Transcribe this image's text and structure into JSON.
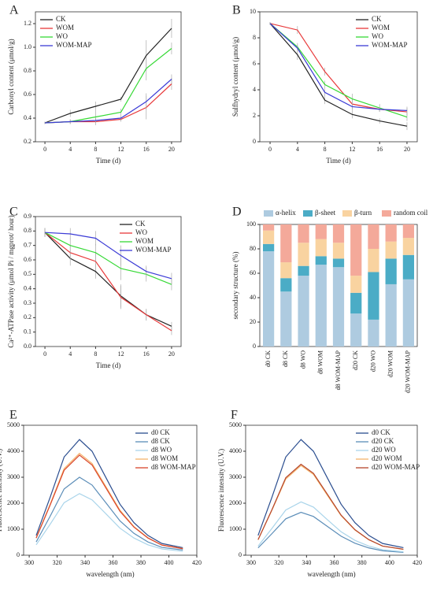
{
  "chart_data": [
    {
      "type": "line",
      "label": "A",
      "xlabel": "Time (d)",
      "ylabel": "Carbonyl content (μmol/g)",
      "x": [
        0,
        4,
        8,
        12,
        16,
        20
      ],
      "xlim": [
        -1.5,
        21.5
      ],
      "xticks": [
        0,
        4,
        8,
        12,
        16,
        20
      ],
      "ylim": [
        0.2,
        1.3
      ],
      "yticks": [
        0.2,
        0.4,
        0.6,
        0.8,
        {
          "value": 1,
          "label": "1.0"
        },
        1.2
      ],
      "legend": "upper left",
      "series": [
        {
          "name": "CK",
          "color": "#222222",
          "values": [
            0.36,
            0.44,
            0.5,
            0.56,
            0.93,
            1.16
          ],
          "errors": [
            0.01,
            0.03,
            0.04,
            0.02,
            0.13,
            0.08
          ]
        },
        {
          "name": "WOM",
          "color": "#e8393a",
          "values": [
            0.36,
            0.37,
            0.37,
            0.39,
            0.49,
            0.69
          ],
          "errors": [
            0.01,
            0.02,
            0.03,
            0.02,
            0.1,
            0.05
          ]
        },
        {
          "name": "WO",
          "color": "#36d936",
          "values": [
            0.36,
            0.37,
            0.41,
            0.45,
            0.82,
            0.99
          ],
          "errors": [
            0.01,
            0.02,
            0.05,
            0.03,
            0.1,
            0.05
          ]
        },
        {
          "name": "WOM-MAP",
          "color": "#3b3bd6",
          "values": [
            0.36,
            0.37,
            0.38,
            0.4,
            0.54,
            0.73
          ],
          "errors": [
            0.01,
            0.02,
            0.02,
            0.02,
            0.07,
            0.04
          ]
        }
      ]
    },
    {
      "type": "line",
      "label": "B",
      "xlabel": "Time (d)",
      "ylabel": "Sulfhydryl content (μmol/g)",
      "x": [
        0,
        4,
        8,
        12,
        16,
        20
      ],
      "xlim": [
        -1.5,
        21.5
      ],
      "xticks": [
        0,
        4,
        8,
        12,
        16,
        20
      ],
      "ylim": [
        0,
        10
      ],
      "yticks": [
        0,
        2,
        4,
        6,
        8,
        10
      ],
      "legend": "upper right",
      "series": [
        {
          "name": "CK",
          "color": "#222222",
          "values": [
            9.1,
            6.7,
            3.2,
            2.1,
            1.6,
            1.2
          ],
          "errors": [
            0.1,
            0.4,
            0.3,
            0.3,
            0.2,
            0.3
          ]
        },
        {
          "name": "WOM",
          "color": "#e8393a",
          "values": [
            9.1,
            8.6,
            5.4,
            2.9,
            2.5,
            2.3
          ],
          "errors": [
            0.1,
            0.3,
            0.3,
            0.4,
            0.2,
            0.3
          ]
        },
        {
          "name": "WO",
          "color": "#36d936",
          "values": [
            9.1,
            7.3,
            4.4,
            3.3,
            2.6,
            1.9
          ],
          "errors": [
            0.1,
            0.3,
            0.3,
            0.4,
            0.3,
            0.3
          ]
        },
        {
          "name": "WOM-MAP",
          "color": "#3b3bd6",
          "values": [
            9.1,
            7.2,
            3.8,
            2.7,
            2.5,
            2.4
          ],
          "errors": [
            0.1,
            0.3,
            0.3,
            0.3,
            0.2,
            0.3
          ]
        }
      ]
    },
    {
      "type": "line",
      "label": "C",
      "xlabel": "Time (d)",
      "ylabel": "Ca²⁺-ATPase activity (μmol Pi / mgprot/ hour)",
      "x": [
        0,
        4,
        8,
        12,
        16,
        20
      ],
      "xlim": [
        -1.5,
        21.5
      ],
      "xticks": [
        0,
        4,
        8,
        12,
        16,
        20
      ],
      "ylim": [
        0,
        0.9
      ],
      "yticks": [
        {
          "value": 0,
          "label": "0.0"
        },
        0.1,
        0.2,
        0.3,
        0.4,
        0.5,
        0.6,
        0.7,
        0.8,
        0.9
      ],
      "legend": "upper right",
      "series": [
        {
          "name": "CK",
          "color": "#222222",
          "values": [
            0.79,
            0.61,
            0.52,
            0.35,
            0.22,
            0.14
          ],
          "errors": [
            0.03,
            0.05,
            0.05,
            0.08,
            0.04,
            0.03
          ]
        },
        {
          "name": "WO",
          "color": "#e8393a",
          "values": [
            0.79,
            0.65,
            0.59,
            0.34,
            0.22,
            0.11
          ],
          "errors": [
            0.03,
            0.05,
            0.06,
            0.08,
            0.04,
            0.03
          ]
        },
        {
          "name": "WOM",
          "color": "#36d936",
          "values": [
            0.79,
            0.7,
            0.65,
            0.54,
            0.5,
            0.43
          ],
          "errors": [
            0.03,
            0.05,
            0.06,
            0.08,
            0.05,
            0.04
          ]
        },
        {
          "name": "WOM-MAP",
          "color": "#3b3bd6",
          "values": [
            0.79,
            0.78,
            0.75,
            0.63,
            0.52,
            0.47
          ],
          "errors": [
            0.03,
            0.04,
            0.05,
            0.07,
            0.04,
            0.04
          ]
        }
      ]
    },
    {
      "type": "stacked_bar",
      "label": "D",
      "ylabel": "secondary structure (%)",
      "categories": [
        "d0 CK",
        "d8 CK",
        "d8 WO",
        "d8 WOM",
        "d8 WOM-MAP",
        "d20 CK",
        "d20 WO",
        "d20 WOM",
        "d20 WOM-MAP"
      ],
      "ylim": [
        0,
        100
      ],
      "yticks": [
        0,
        20,
        40,
        60,
        80,
        100
      ],
      "legend": "top",
      "series": [
        {
          "name": "α-helix",
          "color": "#aecbe0",
          "values": [
            78,
            45,
            58,
            67,
            65,
            27,
            22,
            51,
            55
          ]
        },
        {
          "name": "β-sheet",
          "color": "#4bacc6",
          "values": [
            6,
            11,
            8,
            7,
            7,
            17,
            39,
            21,
            20
          ]
        },
        {
          "name": "β-turn",
          "color": "#f9d3a0",
          "values": [
            11,
            13,
            19,
            14,
            13,
            14,
            19,
            14,
            14
          ]
        },
        {
          "name": "random coil",
          "color": "#f4a99a",
          "values": [
            5,
            31,
            15,
            12,
            15,
            42,
            20,
            14,
            11
          ]
        }
      ]
    },
    {
      "type": "line",
      "label": "E",
      "xlabel": "wavelength (nm)",
      "ylabel": "Fluorescence intensity (U.V.)",
      "x": [
        305,
        315,
        325,
        336,
        345,
        355,
        365,
        375,
        385,
        395,
        410
      ],
      "xlim": [
        296,
        420
      ],
      "xticks": [
        300,
        320,
        340,
        360,
        380,
        400,
        420
      ],
      "ylim": [
        0,
        5000
      ],
      "yticks": [
        0,
        1000,
        2000,
        3000,
        4000,
        5000
      ],
      "legend": "upper right",
      "series": [
        {
          "name": "d0 CK",
          "color": "#2a4d8f",
          "values": [
            760,
            2230,
            3780,
            4450,
            4000,
            2980,
            1960,
            1250,
            760,
            450,
            290
          ]
        },
        {
          "name": "d8 CK",
          "color": "#5b8db8",
          "values": [
            510,
            1500,
            2550,
            3000,
            2700,
            2010,
            1320,
            840,
            510,
            300,
            200
          ]
        },
        {
          "name": "d8 WO",
          "color": "#a9d4ea",
          "values": [
            400,
            1190,
            2020,
            2370,
            2130,
            1590,
            1040,
            660,
            400,
            240,
            150
          ]
        },
        {
          "name": "d8 WOM",
          "color": "#f5b36a",
          "values": [
            670,
            1960,
            3330,
            3920,
            3530,
            2630,
            1730,
            1100,
            670,
            390,
            260
          ]
        },
        {
          "name": "d8 WOM-MAP",
          "color": "#d9452b",
          "values": [
            660,
            1930,
            3270,
            3850,
            3470,
            2580,
            1690,
            1080,
            660,
            390,
            250
          ]
        }
      ]
    },
    {
      "type": "line",
      "label": "F",
      "xlabel": "wavelength (nm)",
      "ylabel": "Fluorescence intensity (U.V.)",
      "x": [
        305,
        315,
        325,
        336,
        345,
        355,
        365,
        375,
        385,
        395,
        410
      ],
      "xlim": [
        296,
        420
      ],
      "xticks": [
        300,
        320,
        340,
        360,
        380,
        400,
        420
      ],
      "ylim": [
        0,
        5000
      ],
      "yticks": [
        0,
        1000,
        2000,
        3000,
        4000,
        5000
      ],
      "legend": "upper right",
      "series": [
        {
          "name": "d0 CK",
          "color": "#2a4d8f",
          "values": [
            760,
            2230,
            3780,
            4450,
            4000,
            2980,
            1960,
            1250,
            760,
            450,
            290
          ]
        },
        {
          "name": "d20 CK",
          "color": "#5b8db8",
          "values": [
            280,
            830,
            1400,
            1650,
            1490,
            1110,
            730,
            460,
            280,
            170,
            110
          ]
        },
        {
          "name": "d20 WO",
          "color": "#a9d4ea",
          "values": [
            350,
            1030,
            1740,
            2050,
            1850,
            1370,
            900,
            570,
            350,
            210,
            130
          ]
        },
        {
          "name": "d20 WOM",
          "color": "#f5b36a",
          "values": [
            590,
            1730,
            2930,
            3450,
            3110,
            2310,
            1520,
            970,
            590,
            350,
            220
          ]
        },
        {
          "name": "d20 WOM-MAP",
          "color": "#b5452b",
          "values": [
            600,
            1750,
            2980,
            3500,
            3150,
            2350,
            1540,
            980,
            600,
            350,
            230
          ]
        }
      ]
    }
  ]
}
